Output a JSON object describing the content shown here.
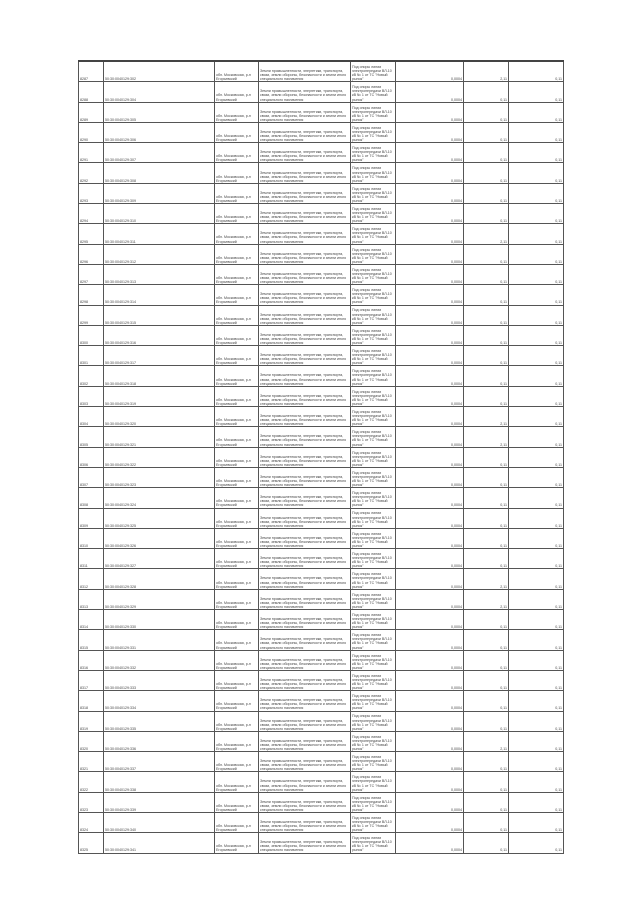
{
  "common": {
    "address": "обл. Московская, р-н Егорьевский",
    "category": "Земли промышленности, энергетики, транспорта, связи, земли обороны, безопасности и земли иного специального назначения",
    "purpose": "Под опоры линии электропередачи ВЛ-10 кВ № 1 от ТС \"Новый рынок\"",
    "area": "0,0004"
  },
  "rows": [
    {
      "n": "8287",
      "cad": "50:30:0040129:302",
      "a": "2,11",
      "b": "0,11"
    },
    {
      "n": "8288",
      "cad": "50:30:0040129:304",
      "a": "0,11",
      "b": "0,11"
    },
    {
      "n": "8289",
      "cad": "50:30:0040129:305",
      "a": "0,11",
      "b": "0,11"
    },
    {
      "n": "8290",
      "cad": "50:30:0040129:306",
      "a": "0,11",
      "b": "0,11"
    },
    {
      "n": "8291",
      "cad": "50:30:0040129:307",
      "a": "0,11",
      "b": "0,11"
    },
    {
      "n": "8292",
      "cad": "50:30:0040129:308",
      "a": "0,11",
      "b": "0,11"
    },
    {
      "n": "8293",
      "cad": "50:30:0040129:309",
      "a": "0,11",
      "b": "0,11"
    },
    {
      "n": "8294",
      "cad": "50:30:0040129:310",
      "a": "0,11",
      "b": "0,11"
    },
    {
      "n": "8295",
      "cad": "50:30:0040129:311",
      "a": "2,11",
      "b": "0,11"
    },
    {
      "n": "8296",
      "cad": "50:30:0040129:312",
      "a": "0,11",
      "b": "0,11"
    },
    {
      "n": "8297",
      "cad": "50:30:0040129:313",
      "a": "0,11",
      "b": "0,11"
    },
    {
      "n": "8298",
      "cad": "50:30:0040129:314",
      "a": "0,11",
      "b": "0,11"
    },
    {
      "n": "8299",
      "cad": "50:30:0040129:315",
      "a": "0,11",
      "b": "0,11"
    },
    {
      "n": "8300",
      "cad": "50:30:0040129:316",
      "a": "0,11",
      "b": "0,11"
    },
    {
      "n": "8301",
      "cad": "50:30:0040129:317",
      "a": "0,11",
      "b": "0,11"
    },
    {
      "n": "8302",
      "cad": "50:30:0040129:318",
      "a": "0,11",
      "b": "0,11"
    },
    {
      "n": "8303",
      "cad": "50:30:0040129:319",
      "a": "0,11",
      "b": "0,11"
    },
    {
      "n": "8304",
      "cad": "50:30:0040129:320",
      "a": "2,11",
      "b": "0,11"
    },
    {
      "n": "8305",
      "cad": "50:30:0040129:321",
      "a": "2,11",
      "b": "0,11"
    },
    {
      "n": "8306",
      "cad": "50:30:0040129:322",
      "a": "0,11",
      "b": "0,11"
    },
    {
      "n": "8307",
      "cad": "50:30:0040129:323",
      "a": "0,11",
      "b": "0,11"
    },
    {
      "n": "8308",
      "cad": "50:30:0040129:324",
      "a": "0,11",
      "b": "0,11"
    },
    {
      "n": "8309",
      "cad": "50:30:0040129:325",
      "a": "0,11",
      "b": "0,11"
    },
    {
      "n": "8310",
      "cad": "50:30:0040129:326",
      "a": "0,11",
      "b": "0,11"
    },
    {
      "n": "8311",
      "cad": "50:30:0040129:327",
      "a": "0,11",
      "b": "0,11"
    },
    {
      "n": "8312",
      "cad": "50:30:0040129:328",
      "a": "2,11",
      "b": "0,11"
    },
    {
      "n": "8313",
      "cad": "50:30:0040129:329",
      "a": "2,11",
      "b": "0,11"
    },
    {
      "n": "8314",
      "cad": "50:30:0040129:330",
      "a": "0,11",
      "b": "0,11"
    },
    {
      "n": "8315",
      "cad": "50:30:0040129:331",
      "a": "0,11",
      "b": "0,11"
    },
    {
      "n": "8316",
      "cad": "50:30:0040129:332",
      "a": "0,11",
      "b": "0,11"
    },
    {
      "n": "8317",
      "cad": "50:30:0040129:333",
      "a": "0,11",
      "b": "0,11"
    },
    {
      "n": "8318",
      "cad": "50:30:0040129:334",
      "a": "0,11",
      "b": "0,11"
    },
    {
      "n": "8319",
      "cad": "50:30:0040129:335",
      "a": "0,11",
      "b": "0,11"
    },
    {
      "n": "8320",
      "cad": "50:30:0040129:336",
      "a": "2,11",
      "b": "0,11"
    },
    {
      "n": "8321",
      "cad": "50:30:0040129:337",
      "a": "0,11",
      "b": "0,11"
    },
    {
      "n": "8322",
      "cad": "50:30:0040129:338",
      "a": "0,11",
      "b": "0,11"
    },
    {
      "n": "8323",
      "cad": "50:30:0040129:339",
      "a": "0,11",
      "b": "0,11"
    },
    {
      "n": "8324",
      "cad": "50:30:0040129:340",
      "a": "0,11",
      "b": "0,11"
    },
    {
      "n": "8325",
      "cad": "50:30:0040129:341",
      "a": "0,11",
      "b": "0,11"
    }
  ]
}
